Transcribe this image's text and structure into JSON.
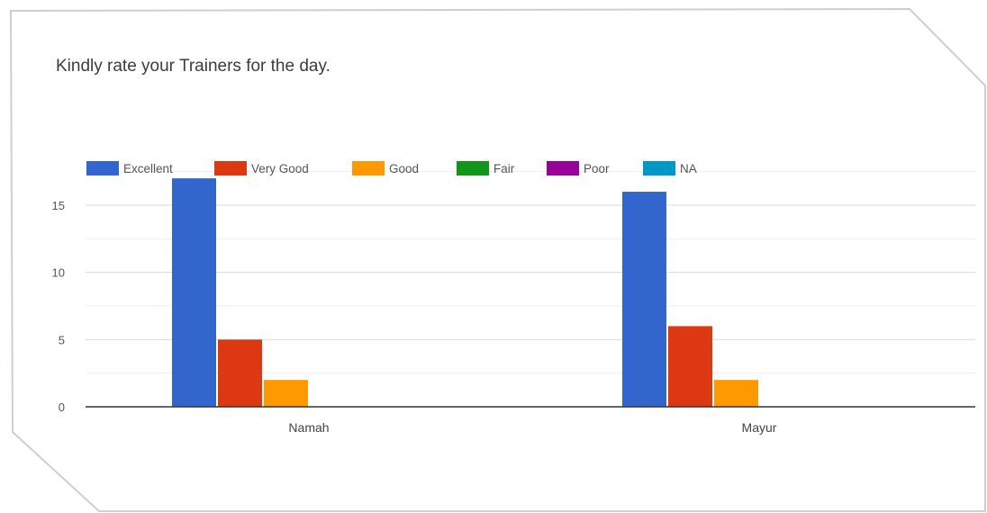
{
  "chart_data": {
    "type": "bar",
    "title": "Kindly rate your Trainers for the day.",
    "categories": [
      "Namah",
      "Mayur"
    ],
    "series": [
      {
        "name": "Excellent",
        "color": "#3366cc",
        "values": [
          17,
          16
        ]
      },
      {
        "name": "Very Good",
        "color": "#dc3912",
        "values": [
          5,
          6
        ]
      },
      {
        "name": "Good",
        "color": "#ff9900",
        "values": [
          2,
          2
        ]
      },
      {
        "name": "Fair",
        "color": "#109618",
        "values": [
          0,
          0
        ]
      },
      {
        "name": "Poor",
        "color": "#990099",
        "values": [
          0,
          0
        ]
      },
      {
        "name": "NA",
        "color": "#0099c6",
        "values": [
          0,
          0
        ]
      }
    ],
    "yticks": [
      "0",
      "5",
      "10",
      "15"
    ],
    "ylim": [
      0,
      17.5
    ],
    "grid": true,
    "legend_position": "top-left"
  }
}
